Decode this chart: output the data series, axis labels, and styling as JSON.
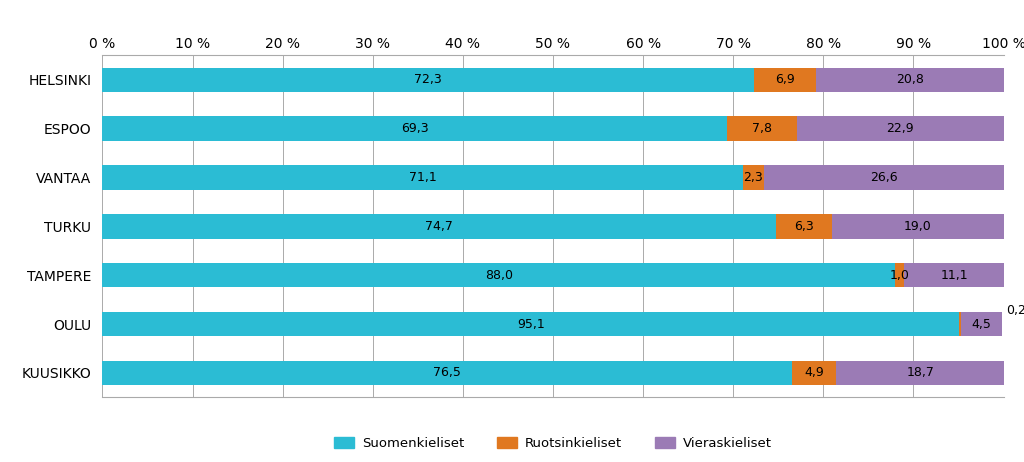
{
  "categories": [
    "HELSINKI",
    "ESPOO",
    "VANTAA",
    "TURKU",
    "TAMPERE",
    "OULU",
    "KUUSIKKO"
  ],
  "suomenkieliset": [
    72.3,
    69.3,
    71.1,
    74.7,
    88.0,
    95.1,
    76.5
  ],
  "ruotsinkieliset": [
    6.9,
    7.8,
    2.3,
    6.3,
    1.0,
    0.2,
    4.9
  ],
  "vieraskieliset": [
    20.8,
    22.9,
    26.6,
    19.0,
    11.1,
    4.5,
    18.7
  ],
  "color_suomi": "#2BBCD4",
  "color_ruotsi": "#E07820",
  "color_vieras": "#9B7BB5",
  "legend_suomi": "Suomenkieliset",
  "legend_ruotsi": "Ruotsinkieliset",
  "legend_vieras": "Vieraskieliset",
  "xlim": [
    0,
    100
  ],
  "xticks": [
    0,
    10,
    20,
    30,
    40,
    50,
    60,
    70,
    80,
    90,
    100
  ],
  "background_color": "#ffffff",
  "label_fontsize": 9,
  "tick_fontsize": 10,
  "bar_height": 0.5
}
